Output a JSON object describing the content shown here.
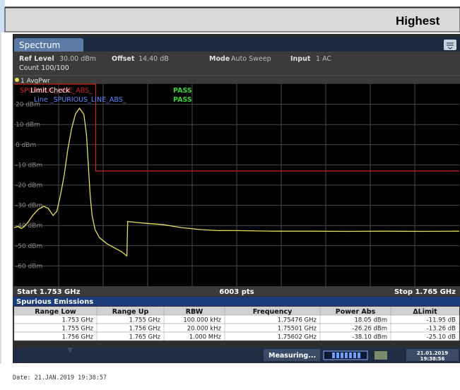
{
  "header": {
    "title": "Highest"
  },
  "tab": "Spectrum",
  "settings": [
    {
      "label": "Ref Level",
      "value": "30.00 dBm"
    },
    {
      "label": "Offset",
      "value": "14.40 dB"
    },
    {
      "label": "Mode",
      "value": "Auto Sweep"
    },
    {
      "label": "Input",
      "value": "1 AC"
    }
  ],
  "count": "Count 100/100",
  "limit_check": {
    "overlay": "SPURIOUS_LINE_ABS_",
    "title": "Limit Check",
    "result": "PASS",
    "line_label": "Line _SPURIOUS_LINE_ABS_",
    "line_result": "PASS"
  },
  "chart_data": {
    "type": "line",
    "x": [
      1.753,
      1.7531,
      1.7532,
      1.75335,
      1.7535,
      1.75365,
      1.7538,
      1.75392,
      1.75405,
      1.75415,
      1.75425,
      1.75435,
      1.75445,
      1.75455,
      1.75465,
      1.75476,
      1.75488,
      1.75495,
      1.755,
      1.75505,
      1.7551,
      1.75518,
      1.7553,
      1.7555,
      1.7557,
      1.7559,
      1.756,
      1.75604,
      1.75606,
      1.7563,
      1.7566,
      1.757,
      1.7575,
      1.758,
      1.7585,
      1.759,
      1.76,
      1.761,
      1.762,
      1.763,
      1.764,
      1.765
    ],
    "series": [
      {
        "name": "1 AvgPwr",
        "color": "#e8e05a",
        "values": [
          -41,
          -40.5,
          -41.5,
          -39,
          -35,
          -32,
          -30.5,
          -31.5,
          -35,
          -33,
          -25,
          -15,
          -2,
          8,
          15,
          18.05,
          15,
          5,
          -10,
          -25,
          -35,
          -42,
          -46,
          -49,
          -51,
          -53,
          -54.5,
          -55,
          -38,
          -38.5,
          -39,
          -39.5,
          -41,
          -42,
          -42.5,
          -42.5,
          -42.8,
          -42.8,
          -42.9,
          -42.8,
          -42.9,
          -42.8
        ]
      }
    ],
    "limit_line": {
      "x": [
        1.753,
        1.7552,
        1.7552,
        1.765
      ],
      "values": [
        30,
        30,
        -13,
        -13
      ],
      "color": "#d42424"
    },
    "xlim": [
      1.753,
      1.765
    ],
    "ylim": [
      -70,
      30
    ],
    "yticks": [
      {
        "value": 20,
        "label": "20 dBm"
      },
      {
        "value": 10,
        "label": "10 dBm"
      },
      {
        "value": 0,
        "label": "0 dBm"
      },
      {
        "value": -10,
        "label": "-10 dBm"
      },
      {
        "value": -20,
        "label": "-20 dBm"
      },
      {
        "value": -30,
        "label": "-30 dBm"
      },
      {
        "value": -40,
        "label": "-40 dBm"
      },
      {
        "value": -50,
        "label": "-50 dBm"
      },
      {
        "value": -60,
        "label": "-60 dBm"
      }
    ],
    "grid": true,
    "start_label": "Start 1.753 GHz",
    "points_label": "6003 pts",
    "stop_label": "Stop 1.765 GHz"
  },
  "table": {
    "title": "Spurious Emissions",
    "columns": [
      "Range Low",
      "Range Up",
      "RBW",
      "Frequency",
      "Power Abs",
      "ΔLimit"
    ],
    "rows": [
      [
        "1.753 GHz",
        "1.755 GHz",
        "100.000 kHz",
        "1.75476 GHz",
        "18.05 dBm",
        "-11.95 dB"
      ],
      [
        "1.755 GHz",
        "1.756 GHz",
        "20.000 kHz",
        "1.75501 GHz",
        "-26.26 dBm",
        "-13.26 dB"
      ],
      [
        "1.756 GHz",
        "1.765 GHz",
        "1.000 MHz",
        "1.75602 GHz",
        "-38.10 dBm",
        "-25.10 dB"
      ]
    ]
  },
  "status": {
    "text": "Measuring...",
    "date": "21.01.2019",
    "time": "19:38:56"
  },
  "footer": "Date: 21.JAN.2019  19:38:57"
}
